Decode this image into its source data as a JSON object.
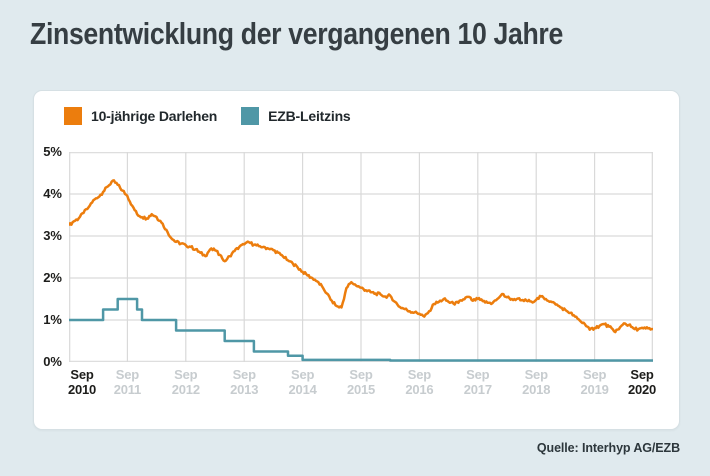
{
  "page": {
    "title": "Zinsentwicklung der vergangenen 10 Jahre",
    "source": "Quelle: Interhyp AG/EZB"
  },
  "legend": [
    {
      "label": "10-jährige Darlehen",
      "color": "#ec7d0d"
    },
    {
      "label": "EZB-Leitzins",
      "color": "#4f97a6"
    }
  ],
  "colors": {
    "background": "#e0eaee",
    "card": "#ffffff",
    "gridline": "#d9d9d9",
    "tick_dark": "#1d1d1b",
    "tick_muted": "#c7cccf"
  },
  "chart_data": {
    "type": "line",
    "title": "Zinsentwicklung der vergangenen 10 Jahre",
    "ylim": [
      0,
      5
    ],
    "y_tick_labels": [
      "5%",
      "4%",
      "3%",
      "2%",
      "1%",
      "0%"
    ],
    "grid": true,
    "legend_position": "top-left",
    "x_interval": "monthly",
    "x_start": "2010-09",
    "x_end": "2020-09",
    "x_tick_labels": [
      {
        "top": "Sep",
        "bottom": "2010",
        "muted": false
      },
      {
        "top": "Sep",
        "bottom": "2011",
        "muted": true
      },
      {
        "top": "Sep",
        "bottom": "2012",
        "muted": true
      },
      {
        "top": "Sep",
        "bottom": "2013",
        "muted": true
      },
      {
        "top": "Sep",
        "bottom": "2014",
        "muted": true
      },
      {
        "top": "Sep",
        "bottom": "2015",
        "muted": true
      },
      {
        "top": "Sep",
        "bottom": "2016",
        "muted": true
      },
      {
        "top": "Sep",
        "bottom": "2017",
        "muted": true
      },
      {
        "top": "Sep",
        "bottom": "2018",
        "muted": true
      },
      {
        "top": "Sep",
        "bottom": "2019",
        "muted": true
      },
      {
        "top": "Sep",
        "bottom": "2020",
        "muted": false
      }
    ],
    "series": [
      {
        "name": "10-jährige Darlehen",
        "color": "#ec7d0d",
        "unit": "percent",
        "style": "line",
        "values": [
          3.25,
          3.35,
          3.42,
          3.55,
          3.68,
          3.85,
          3.92,
          4.05,
          4.18,
          4.32,
          4.22,
          4.08,
          3.95,
          3.72,
          3.52,
          3.45,
          3.42,
          3.52,
          3.45,
          3.32,
          3.15,
          2.95,
          2.86,
          2.82,
          2.78,
          2.74,
          2.68,
          2.6,
          2.52,
          2.68,
          2.66,
          2.55,
          2.4,
          2.52,
          2.64,
          2.74,
          2.8,
          2.85,
          2.79,
          2.76,
          2.74,
          2.7,
          2.66,
          2.6,
          2.51,
          2.42,
          2.34,
          2.25,
          2.15,
          2.06,
          2.0,
          1.92,
          1.8,
          1.63,
          1.46,
          1.33,
          1.3,
          1.76,
          1.9,
          1.82,
          1.77,
          1.71,
          1.66,
          1.63,
          1.61,
          1.56,
          1.58,
          1.43,
          1.31,
          1.26,
          1.21,
          1.18,
          1.15,
          1.08,
          1.21,
          1.38,
          1.43,
          1.5,
          1.43,
          1.39,
          1.41,
          1.49,
          1.55,
          1.46,
          1.5,
          1.45,
          1.41,
          1.4,
          1.5,
          1.62,
          1.54,
          1.5,
          1.5,
          1.47,
          1.46,
          1.44,
          1.48,
          1.56,
          1.5,
          1.44,
          1.37,
          1.3,
          1.24,
          1.17,
          1.08,
          0.98,
          0.9,
          0.77,
          0.81,
          0.86,
          0.9,
          0.84,
          0.73,
          0.78,
          0.92,
          0.88,
          0.8,
          0.78,
          0.8,
          0.8,
          0.78
        ]
      },
      {
        "name": "EZB-Leitzins",
        "color": "#4f97a6",
        "unit": "percent",
        "style": "step",
        "steps": [
          {
            "date": "2010-09",
            "value": 1.0
          },
          {
            "date": "2011-04",
            "value": 1.25
          },
          {
            "date": "2011-07",
            "value": 1.5
          },
          {
            "date": "2011-11",
            "value": 1.25
          },
          {
            "date": "2011-12",
            "value": 1.0
          },
          {
            "date": "2012-07",
            "value": 0.75
          },
          {
            "date": "2013-05",
            "value": 0.5
          },
          {
            "date": "2013-11",
            "value": 0.25
          },
          {
            "date": "2014-06",
            "value": 0.15
          },
          {
            "date": "2014-09",
            "value": 0.05
          },
          {
            "date": "2016-03",
            "value": 0.0
          }
        ]
      }
    ]
  }
}
